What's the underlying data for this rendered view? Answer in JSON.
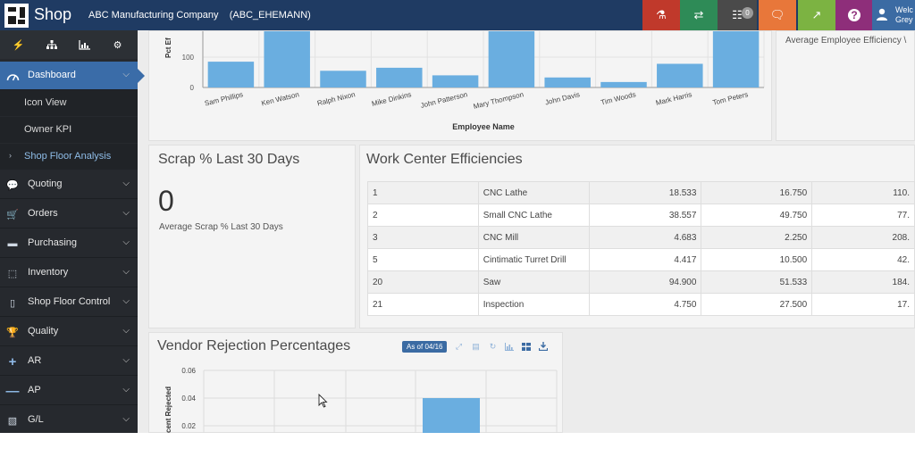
{
  "header": {
    "app_name": "Shop",
    "company": "ABC Manufacturing Company    (ABC_EHEMANN)",
    "buttons": [
      {
        "name": "alert-button",
        "icon": "flask-icon",
        "color": "#c0392b"
      },
      {
        "name": "sync-button",
        "icon": "refresh-icon",
        "color": "#2e8b57"
      },
      {
        "name": "org-button",
        "icon": "sitemap-icon",
        "color": "#4a4a4a",
        "badge": "0"
      },
      {
        "name": "chat-button",
        "icon": "chat-icon",
        "color": "#e8773a"
      },
      {
        "name": "external-link-button",
        "icon": "external-link-icon",
        "color": "#7cb342"
      },
      {
        "name": "help-button",
        "icon": "question-icon",
        "color": "#8e2e7a"
      }
    ],
    "welcome_line1": "Welc",
    "welcome_line2": "Grey"
  },
  "quick_actions": [
    {
      "icon": "bolt-icon",
      "color": "#f0ad2c"
    },
    {
      "icon": "sitemap-icon",
      "color": "#3b7dc4"
    },
    {
      "icon": "chart-icon",
      "color": "#4caf50"
    },
    {
      "icon": "cogs-icon",
      "color": "#e0593a"
    }
  ],
  "sidebar": {
    "dashboard": "Dashboard",
    "sub_items": [
      "Icon View",
      "Owner KPI",
      "Shop Floor Analysis"
    ],
    "items": [
      {
        "label": "Quoting",
        "icon": "comments-icon"
      },
      {
        "label": "Orders",
        "icon": "cart-icon"
      },
      {
        "label": "Purchasing",
        "icon": "credit-card-icon"
      },
      {
        "label": "Inventory",
        "icon": "cubes-icon"
      },
      {
        "label": "Shop Floor Control",
        "icon": "tablet-icon"
      },
      {
        "label": "Quality",
        "icon": "trophy-icon"
      },
      {
        "label": "AR",
        "icon": "plus-icon"
      },
      {
        "label": "AP",
        "icon": "minus-icon"
      },
      {
        "label": "G/L",
        "icon": "book-icon"
      }
    ]
  },
  "chart_data": [
    {
      "type": "bar",
      "ylabel": "Pct Ef",
      "xlabel": "Employee Name",
      "categories": [
        "Sam Phillips",
        "Ken Watson",
        "Ralph Nixon",
        "Mike Dinkins",
        "John Patterson",
        "Mary Thompson",
        "John Davis",
        "Tim Woods",
        "Mark Harris",
        "Tom Peters"
      ],
      "values": [
        85,
        190,
        55,
        65,
        40,
        190,
        33,
        18,
        78,
        190
      ],
      "yticks": [
        "0",
        "100"
      ],
      "ylim": [
        0,
        190
      ],
      "color": "#6aaee0"
    },
    {
      "type": "bar",
      "title": "Vendor Rejection Percentages",
      "ylabel": "cent Rejected",
      "yticks": [
        "0.06",
        "0.04",
        "0.02"
      ],
      "values": [
        0.04
      ],
      "color": "#6aaee0"
    }
  ],
  "efficiency_panel": {
    "caption": "Average Employee Efficiency \\"
  },
  "scrap": {
    "title": "Scrap % Last 30 Days",
    "value": "0",
    "caption": "Average Scrap % Last 30 Days"
  },
  "work_centers": {
    "title": "Work Center Efficiencies",
    "rows": [
      {
        "id": "1",
        "name": "CNC Lathe",
        "a": "18.533",
        "b": "16.750",
        "c": "110."
      },
      {
        "id": "2",
        "name": "Small CNC Lathe",
        "a": "38.557",
        "b": "49.750",
        "c": "77."
      },
      {
        "id": "3",
        "name": "CNC Mill",
        "a": "4.683",
        "b": "2.250",
        "c": "208."
      },
      {
        "id": "5",
        "name": "Cintimatic Turret Drill",
        "a": "4.417",
        "b": "10.500",
        "c": "42."
      },
      {
        "id": "20",
        "name": "Saw",
        "a": "94.900",
        "b": "51.533",
        "c": "184."
      },
      {
        "id": "21",
        "name": "Inspection",
        "a": "4.750",
        "b": "27.500",
        "c": "17."
      }
    ]
  },
  "vendor_rejection": {
    "title": "Vendor Rejection Percentages",
    "as_of": "As of 04/16"
  }
}
